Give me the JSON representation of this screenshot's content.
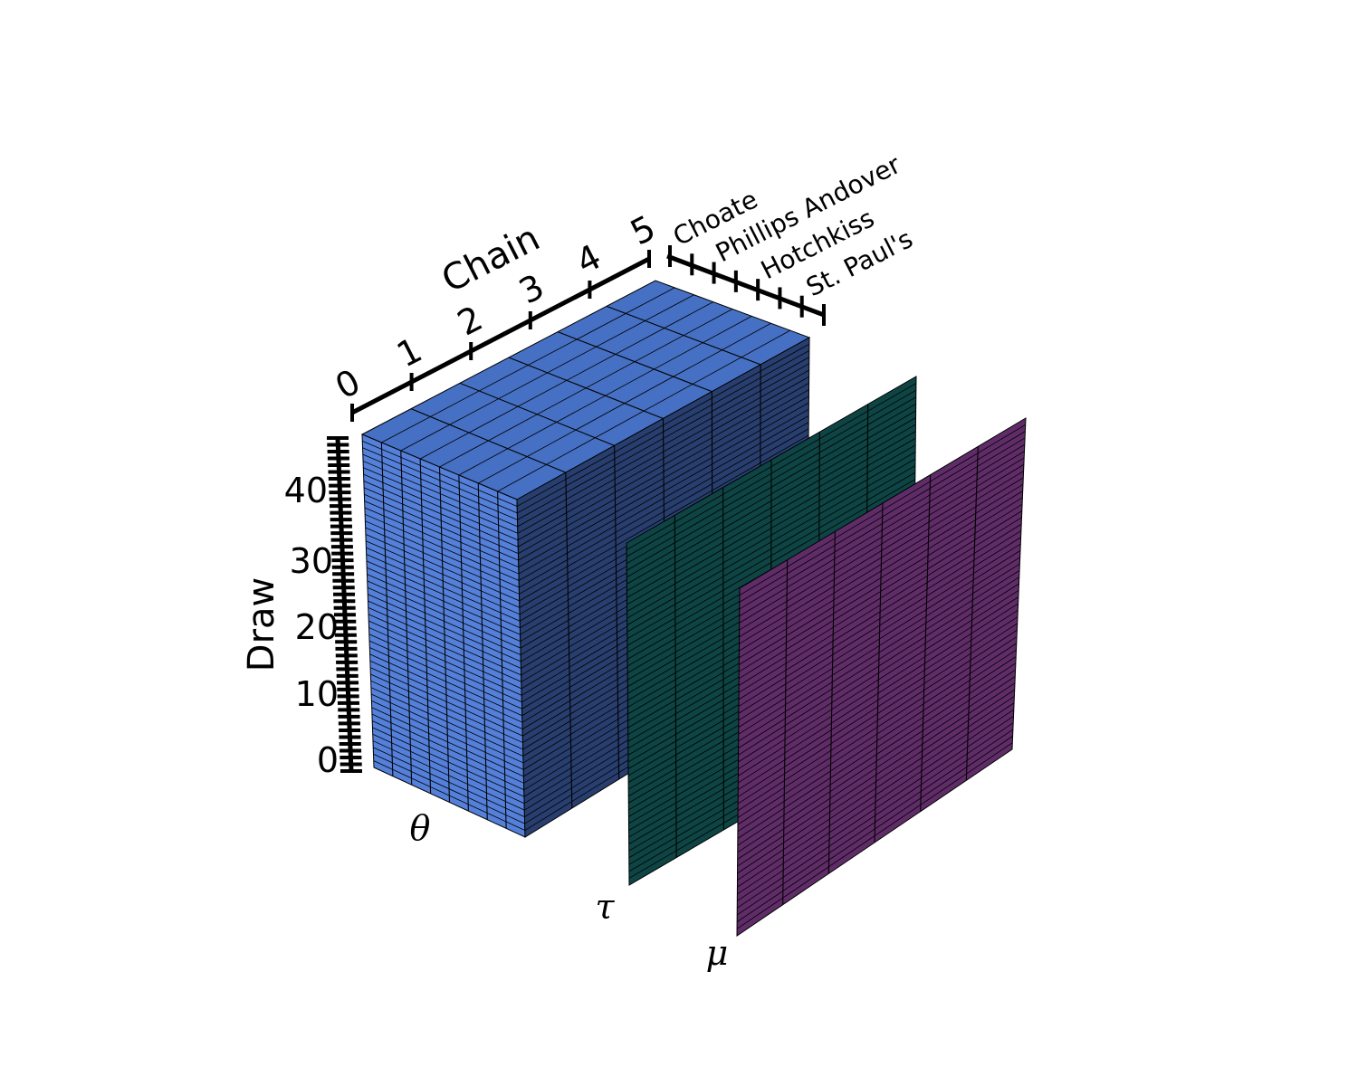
{
  "axes": {
    "chain": {
      "title": "Chain",
      "ticks": [
        "0",
        "1",
        "2",
        "3",
        "4",
        "5"
      ]
    },
    "draw": {
      "title": "Draw",
      "ticks": [
        "0",
        "10",
        "20",
        "30",
        "40"
      ],
      "tick_values": [
        0,
        10,
        20,
        30,
        40
      ],
      "count": 50
    },
    "school": {
      "ticks": [
        "Choate",
        "Phillips Andover",
        "Hotchkiss",
        "St. Paul's"
      ],
      "count": 8
    }
  },
  "variables": {
    "theta": {
      "label": "θ",
      "color_front": "#5580DA",
      "color_side": "#283E6E",
      "color_top": "#4670C3"
    },
    "tau": {
      "label": "τ",
      "color": "#0E4444"
    },
    "mu": {
      "label": "μ",
      "color": "#5F2C68"
    }
  }
}
